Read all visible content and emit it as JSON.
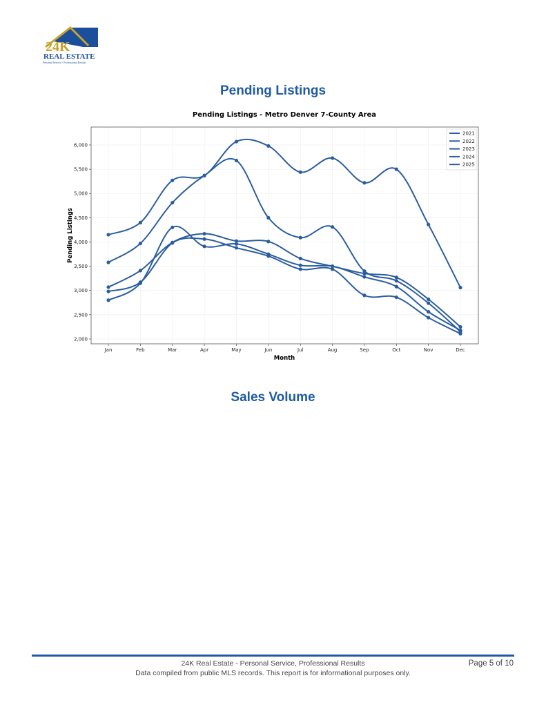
{
  "header": {
    "logo_text": "24K REAL ESTATE",
    "logo_tagline": "Personal Service - Professional Results"
  },
  "sections": {
    "pending_title": "Pending Listings",
    "sales_title": "Sales Volume"
  },
  "colors": {
    "series": "#2a5d9f",
    "heading": "#1f5aa6",
    "logo_gold": "#c9a227",
    "logo_blue": "#1b4f9c"
  },
  "chart_data": {
    "type": "line",
    "title": "Pending Listings - Metro Denver 7-County Area",
    "xlabel": "Month",
    "ylabel": "Pending Listings",
    "categories": [
      "Jan",
      "Feb",
      "Mar",
      "Apr",
      "May",
      "Jun",
      "Jul",
      "Aug",
      "Sep",
      "Oct",
      "Nov",
      "Dec"
    ],
    "ylim": [
      1900,
      6370
    ],
    "yticks": [
      2000,
      2500,
      3000,
      3500,
      4000,
      4500,
      5000,
      5500,
      6000
    ],
    "ytick_labels": [
      "2,000",
      "2,500",
      "3,000",
      "3,500",
      "4,000",
      "4,500",
      "5,000",
      "5,500",
      "6,000"
    ],
    "grid": true,
    "legend_position": "top-right",
    "smoothed": true,
    "series": [
      {
        "name": "2021",
        "values": [
          4150,
          4400,
          5270,
          5370,
          6070,
          5980,
          5440,
          5730,
          5220,
          5500,
          4360,
          3060
        ]
      },
      {
        "name": "2022",
        "values": [
          3580,
          3970,
          4810,
          5370,
          5680,
          4500,
          4090,
          4310,
          3400,
          3200,
          2740,
          2150
        ]
      },
      {
        "name": "2023",
        "values": [
          2800,
          3150,
          4300,
          3910,
          3960,
          3750,
          3520,
          3500,
          3280,
          3080,
          2560,
          2180
        ]
      },
      {
        "name": "2024",
        "values": [
          3070,
          3410,
          3990,
          4170,
          4020,
          4010,
          3660,
          3500,
          3350,
          3270,
          2820,
          2250
        ]
      },
      {
        "name": "2025",
        "values": [
          2980,
          3170,
          3980,
          4060,
          3880,
          3710,
          3440,
          3440,
          2900,
          2860,
          2440,
          2110
        ]
      }
    ]
  },
  "footer": {
    "line1": "24K Real Estate - Personal Service, Professional Results",
    "line2": "Data compiled from public MLS records. This report is for informational purposes only.",
    "page": "Page 5 of 10"
  }
}
